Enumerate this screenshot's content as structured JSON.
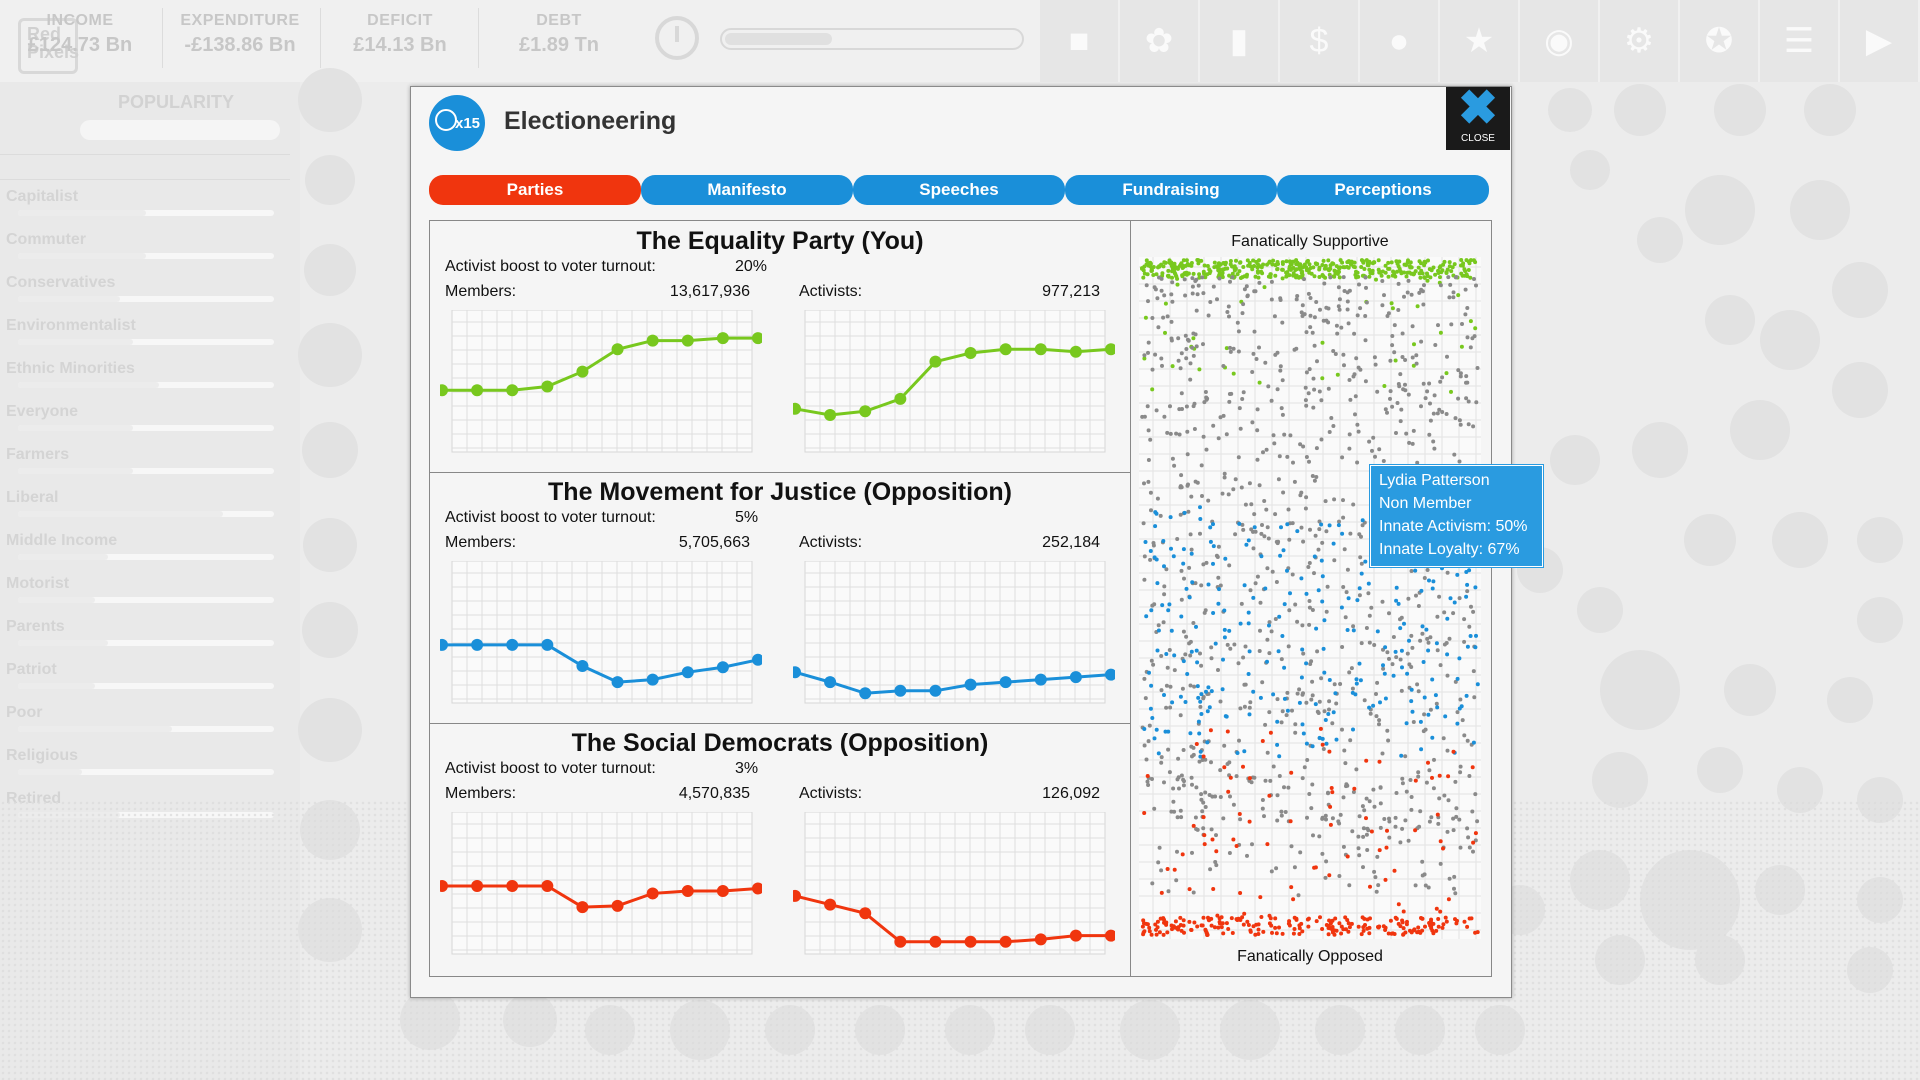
{
  "topbar": {
    "logo_text": "Red Pixels",
    "stats": [
      {
        "label": "INCOME",
        "value": "£124.73 Bn"
      },
      {
        "label": "EXPENDITURE",
        "value": "-£138.86 Bn"
      },
      {
        "label": "DEFICIT",
        "value": "£14.13 Bn"
      },
      {
        "label": "DEBT",
        "value": "£1.89 Tn"
      }
    ],
    "progress": 0.36,
    "icons": [
      "gun-icon",
      "atom-icon",
      "bar-chart-icon",
      "dollar-icon",
      "lightbulb-icon",
      "trophy-icon",
      "people-icon",
      "gear-icon",
      "award-icon",
      "document-icon",
      "play-icon"
    ]
  },
  "sidebar": {
    "title": "POPULARITY",
    "groups": [
      {
        "name": "Capitalist",
        "value": 0.5
      },
      {
        "name": "Commuter",
        "value": 0.5
      },
      {
        "name": "Conservatives",
        "value": 0.4
      },
      {
        "name": "Environmentalist",
        "value": 0.45
      },
      {
        "name": "Ethnic Minorities",
        "value": 0.55
      },
      {
        "name": "Everyone",
        "value": 0.45
      },
      {
        "name": "Farmers",
        "value": 0.45
      },
      {
        "name": "Liberal",
        "value": 0.8
      },
      {
        "name": "Middle Income",
        "value": 0.35
      },
      {
        "name": "Motorist",
        "value": 0.3
      },
      {
        "name": "Parents",
        "value": 0.35
      },
      {
        "name": "Patriot",
        "value": 0.3
      },
      {
        "name": "Poor",
        "value": 0.6
      },
      {
        "name": "Religious",
        "value": 0.25
      },
      {
        "name": "Retired",
        "value": 0.4
      }
    ]
  },
  "dialog": {
    "badge_count": "x15",
    "title": "Electioneering",
    "close_label": "CLOSE",
    "tabs": [
      "Parties",
      "Manifesto",
      "Speeches",
      "Fundraising",
      "Perceptions"
    ],
    "active_tab": 0,
    "boost_label": "Activist boost to voter turnout:",
    "members_label": "Members:",
    "activists_label": "Activists:",
    "parties": [
      {
        "name": "The Equality Party (You)",
        "boost": "20%",
        "members": "13,617,936",
        "activists": "977,213",
        "color": "#78c81e",
        "members_trend": [
          0.45,
          0.45,
          0.45,
          0.48,
          0.6,
          0.78,
          0.85,
          0.85,
          0.87,
          0.87
        ],
        "activists_trend": [
          0.3,
          0.25,
          0.28,
          0.38,
          0.68,
          0.75,
          0.78,
          0.78,
          0.76,
          0.78
        ]
      },
      {
        "name": "The Movement for Justice (Opposition)",
        "boost": "5%",
        "members": "5,705,663",
        "activists": "252,184",
        "color": "#1a8fd9",
        "members_trend": [
          0.42,
          0.42,
          0.42,
          0.42,
          0.25,
          0.12,
          0.14,
          0.2,
          0.24,
          0.3
        ],
        "activists_trend": [
          0.2,
          0.12,
          0.03,
          0.05,
          0.05,
          0.1,
          0.12,
          0.14,
          0.16,
          0.18
        ]
      },
      {
        "name": "The Social Democrats (Opposition)",
        "boost": "3%",
        "members": "4,570,835",
        "activists": "126,092",
        "color": "#f0350e",
        "members_trend": [
          0.5,
          0.5,
          0.5,
          0.5,
          0.33,
          0.34,
          0.44,
          0.46,
          0.46,
          0.48
        ],
        "activists_trend": [
          0.42,
          0.35,
          0.28,
          0.05,
          0.05,
          0.05,
          0.05,
          0.07,
          0.1,
          0.1
        ]
      }
    ],
    "opinion": {
      "top_label": "Fanatically Supportive",
      "bottom_label": "Fanatically Opposed"
    },
    "tooltip": {
      "name": "Lydia Patterson",
      "membership": "Non Member",
      "activism": "Innate Activism: 50%",
      "loyalty": "Innate Loyalty: 67%"
    }
  }
}
